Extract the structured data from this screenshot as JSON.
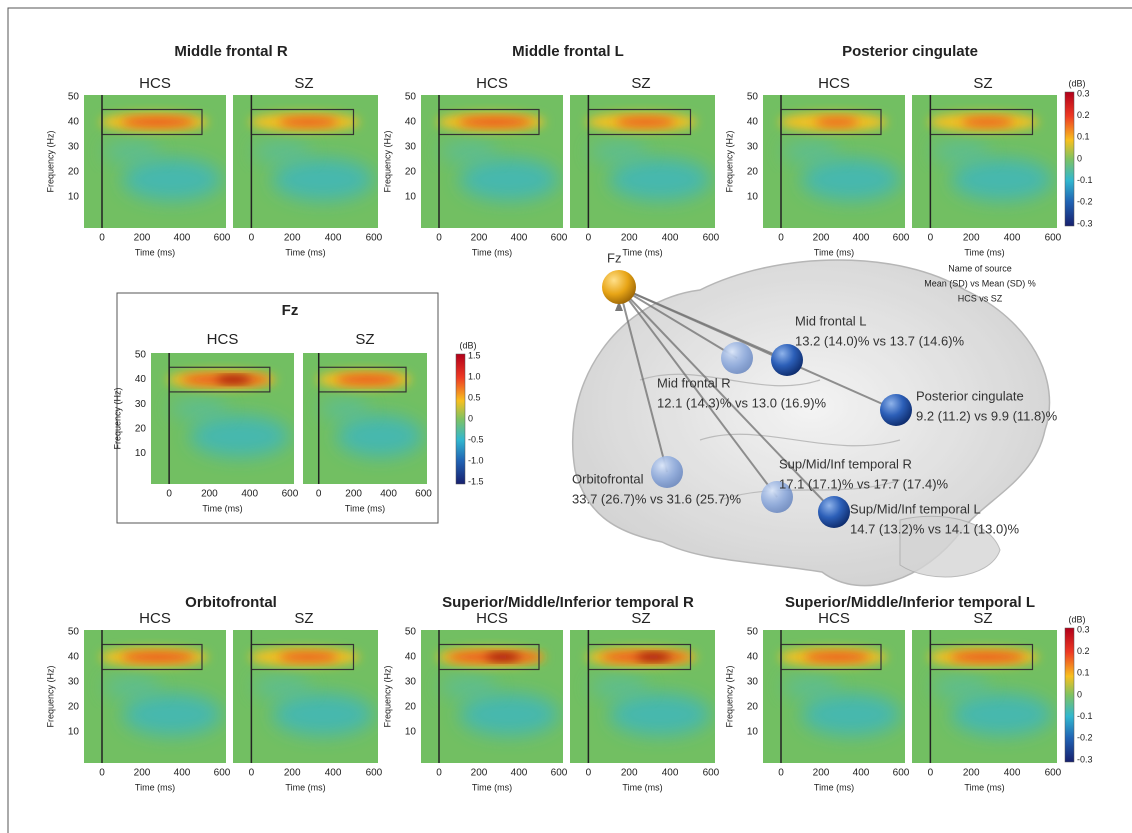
{
  "axes": {
    "y_label": "Frequency (Hz)",
    "x_label": "Time (ms)",
    "yticks": [
      "50",
      "40",
      "30",
      "20",
      "10"
    ],
    "xticks": [
      "0",
      "200",
      "400",
      "600"
    ]
  },
  "top_row": [
    {
      "title": "Middle frontal R",
      "conditions": [
        "HCS",
        "SZ"
      ]
    },
    {
      "title": "Middle frontal L",
      "conditions": [
        "HCS",
        "SZ"
      ]
    },
    {
      "title": "Posterior cingulate",
      "conditions": [
        "HCS",
        "SZ"
      ]
    }
  ],
  "bottom_row": [
    {
      "title": "Orbitofrontal",
      "conditions": [
        "HCS",
        "SZ"
      ]
    },
    {
      "title": "Superior/Middle/Inferior temporal R",
      "conditions": [
        "HCS",
        "SZ"
      ]
    },
    {
      "title": "Superior/Middle/Inferior temporal L",
      "conditions": [
        "HCS",
        "SZ"
      ]
    }
  ],
  "fz_panel": {
    "title": "Fz",
    "conditions": [
      "HCS",
      "SZ"
    ]
  },
  "colorbar_top": {
    "unit": "(dB)",
    "ticks": [
      "0.3",
      "0.2",
      "0.1",
      "0",
      "-0.1",
      "-0.2",
      "-0.3"
    ]
  },
  "colorbar_bottom": {
    "unit": "(dB)",
    "ticks": [
      "0.3",
      "0.2",
      "0.1",
      "0",
      "-0.1",
      "-0.2",
      "-0.3"
    ]
  },
  "colorbar_fz": {
    "unit": "(dB)",
    "ticks": [
      "1.5",
      "1.0",
      "0.5",
      "0",
      "-0.5",
      "-1.0",
      "-1.5"
    ]
  },
  "diagram": {
    "electrode": "Fz",
    "legend": [
      "Name of source",
      "Mean (SD) vs Mean (SD) %",
      "HCS vs SZ"
    ],
    "sources": [
      {
        "name": "Mid frontal L",
        "stats": "13.2 (14.0)% vs 13.7 (14.6)%"
      },
      {
        "name": "Mid frontal R",
        "stats": "12.1 (14.3)% vs 13.0 (16.9)%"
      },
      {
        "name": "Posterior cingulate",
        "stats": "9.2 (11.2) vs 9.9 (11.8)%"
      },
      {
        "name": "Orbitofrontal",
        "stats": "33.7 (26.7)% vs 31.6 (25.7)%"
      },
      {
        "name": "Sup/Mid/Inf temporal R",
        "stats": "17.1 (17.1)% vs 17.7 (17.4)%"
      },
      {
        "name": "Sup/Mid/Inf temporal L",
        "stats": "14.7 (13.2)% vs 14.1 (13.0)%"
      }
    ]
  }
}
